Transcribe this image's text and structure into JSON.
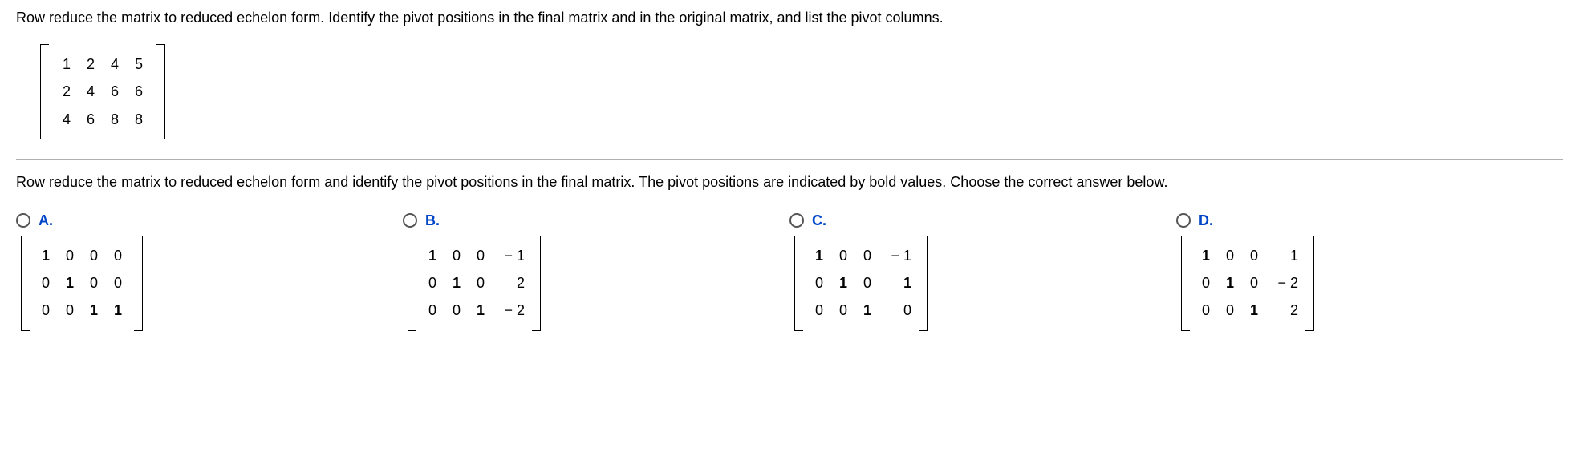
{
  "question_text": "Row reduce the matrix to reduced echelon form. Identify the pivot positions in the final matrix and in the original matrix, and list the pivot columns.",
  "matrix": {
    "rows": [
      [
        "1",
        "2",
        "4",
        "5"
      ],
      [
        "2",
        "4",
        "6",
        "6"
      ],
      [
        "4",
        "6",
        "8",
        "8"
      ]
    ]
  },
  "sub_question_text": "Row reduce the matrix to reduced echelon form and identify the pivot positions in the final matrix. The pivot positions are indicated by bold values. Choose the correct answer below.",
  "options": {
    "A": {
      "label": "A.",
      "rows": [
        [
          {
            "v": "1",
            "b": true
          },
          {
            "v": "0"
          },
          {
            "v": "0"
          },
          {
            "v": "0"
          }
        ],
        [
          {
            "v": "0"
          },
          {
            "v": "1",
            "b": true
          },
          {
            "v": "0"
          },
          {
            "v": "0"
          }
        ],
        [
          {
            "v": "0"
          },
          {
            "v": "0"
          },
          {
            "v": "1",
            "b": true
          },
          {
            "v": "1",
            "b": true
          }
        ]
      ]
    },
    "B": {
      "label": "B.",
      "rows": [
        [
          {
            "v": "1",
            "b": true
          },
          {
            "v": "0"
          },
          {
            "v": "0"
          },
          {
            "v": "− 1"
          }
        ],
        [
          {
            "v": "0"
          },
          {
            "v": "1",
            "b": true
          },
          {
            "v": "0"
          },
          {
            "v": "2"
          }
        ],
        [
          {
            "v": "0"
          },
          {
            "v": "0"
          },
          {
            "v": "1",
            "b": true
          },
          {
            "v": "− 2"
          }
        ]
      ]
    },
    "C": {
      "label": "C.",
      "rows": [
        [
          {
            "v": "1",
            "b": true
          },
          {
            "v": "0"
          },
          {
            "v": "0"
          },
          {
            "v": "− 1"
          }
        ],
        [
          {
            "v": "0"
          },
          {
            "v": "1",
            "b": true
          },
          {
            "v": "0"
          },
          {
            "v": "1",
            "b": true
          }
        ],
        [
          {
            "v": "0"
          },
          {
            "v": "0"
          },
          {
            "v": "1",
            "b": true
          },
          {
            "v": "0"
          }
        ]
      ]
    },
    "D": {
      "label": "D.",
      "rows": [
        [
          {
            "v": "1",
            "b": true
          },
          {
            "v": "0"
          },
          {
            "v": "0"
          },
          {
            "v": "1"
          }
        ],
        [
          {
            "v": "0"
          },
          {
            "v": "1",
            "b": true
          },
          {
            "v": "0"
          },
          {
            "v": "− 2"
          }
        ],
        [
          {
            "v": "0"
          },
          {
            "v": "0"
          },
          {
            "v": "1",
            "b": true
          },
          {
            "v": "2"
          }
        ]
      ]
    }
  }
}
